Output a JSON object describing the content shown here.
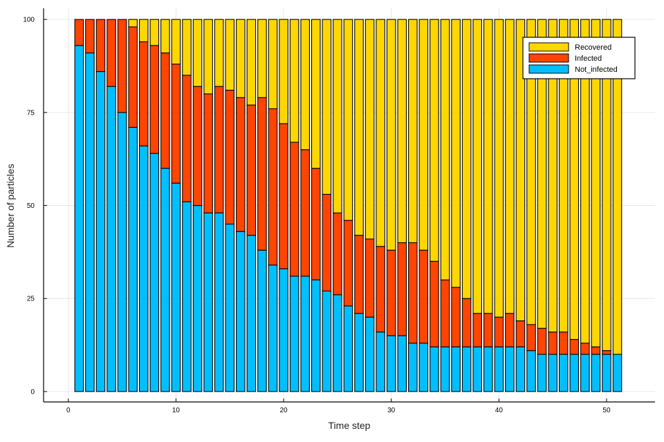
{
  "chart_data": {
    "type": "bar",
    "stacked": true,
    "title": "",
    "xlabel": "Time step",
    "ylabel": "Number of particles",
    "xlim": [
      -2.3,
      54.5
    ],
    "ylim": [
      -2.8,
      103
    ],
    "x_ticks": [
      0,
      10,
      20,
      30,
      40,
      50
    ],
    "y_ticks": [
      0,
      25,
      50,
      75,
      100
    ],
    "grid": true,
    "legend": "top-right",
    "x": [
      1,
      2,
      3,
      4,
      5,
      6,
      7,
      8,
      9,
      10,
      11,
      12,
      13,
      14,
      15,
      16,
      17,
      18,
      19,
      20,
      21,
      22,
      23,
      24,
      25,
      26,
      27,
      28,
      29,
      30,
      31,
      32,
      33,
      34,
      35,
      36,
      37,
      38,
      39,
      40,
      41,
      42,
      43,
      44,
      45,
      46,
      47,
      48,
      49,
      50,
      51
    ],
    "series": [
      {
        "name": "Not_infected",
        "color": "#00BFFF",
        "values": [
          93,
          91,
          86,
          82,
          75,
          71,
          66,
          64,
          60,
          56,
          51,
          50,
          48,
          48,
          45,
          43,
          42,
          38,
          34,
          33,
          31,
          31,
          30,
          27,
          26,
          23,
          21,
          20,
          16,
          15,
          15,
          13,
          13,
          12,
          12,
          12,
          12,
          12,
          12,
          12,
          12,
          12,
          11,
          10,
          10,
          10,
          10,
          10,
          10,
          10,
          10
        ]
      },
      {
        "name": "Infected",
        "color": "#FF4500",
        "values": [
          7,
          9,
          14,
          18,
          25,
          27,
          28,
          29,
          31,
          32,
          34,
          32,
          32,
          34,
          36,
          36,
          35,
          41,
          42,
          39,
          36,
          34,
          30,
          26,
          22,
          23,
          21,
          21,
          23,
          23,
          25,
          27,
          25,
          23,
          18,
          16,
          13,
          9,
          9,
          8,
          9,
          7,
          7,
          7,
          6,
          6,
          4,
          3,
          2,
          1,
          0
        ]
      },
      {
        "name": "Recovered",
        "color": "#FFD700",
        "values": [
          0,
          0,
          0,
          0,
          0,
          2,
          6,
          7,
          9,
          12,
          15,
          18,
          20,
          18,
          19,
          21,
          23,
          21,
          24,
          28,
          33,
          35,
          40,
          47,
          52,
          54,
          58,
          59,
          61,
          62,
          60,
          60,
          62,
          65,
          70,
          72,
          75,
          79,
          79,
          80,
          79,
          81,
          82,
          83,
          84,
          84,
          86,
          87,
          88,
          89,
          90
        ]
      }
    ]
  }
}
